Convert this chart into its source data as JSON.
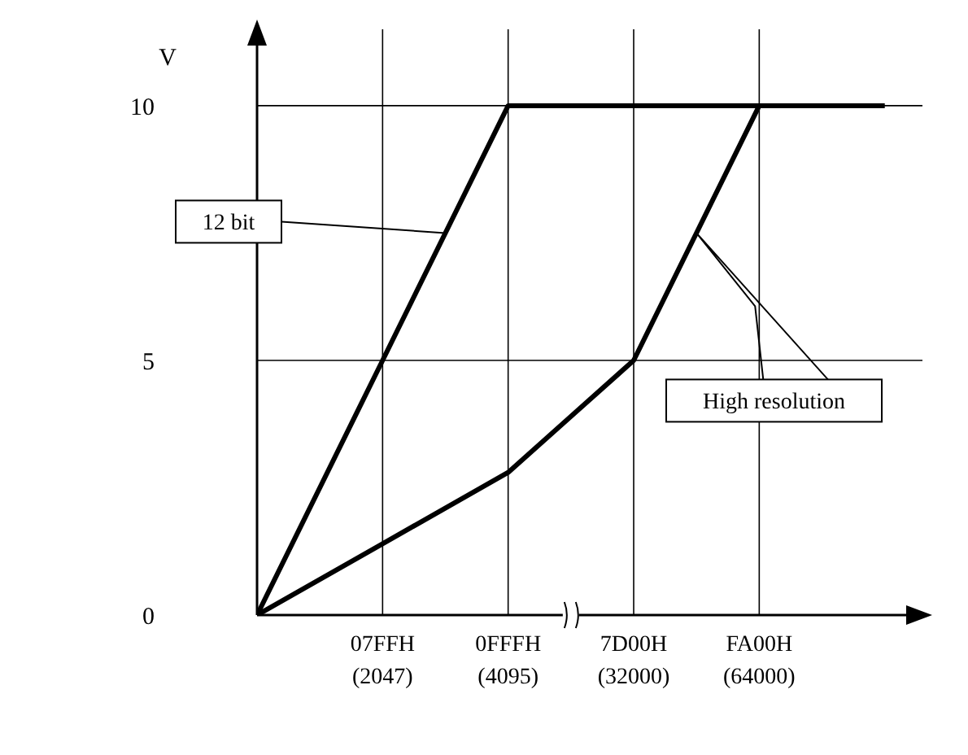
{
  "chart_data": {
    "type": "line",
    "ylabel": "V",
    "categories": [
      null,
      "07FFH (2047)",
      "0FFFH (4095)",
      "7D00H (32000)",
      "FA00H (64000)",
      null
    ],
    "series": [
      {
        "name": "12 bit",
        "color": "#000000",
        "values": [
          0,
          5,
          10,
          10,
          10,
          10
        ]
      },
      {
        "name": "High resolution",
        "color": "#000000",
        "values": [
          0,
          1.4,
          2.8,
          5,
          10,
          null
        ]
      }
    ],
    "ylim": [
      0,
      11.5
    ],
    "yticks": [
      0,
      5,
      10
    ],
    "grid": true,
    "legend": false,
    "marker": "none",
    "line_style": "solid"
  }
}
